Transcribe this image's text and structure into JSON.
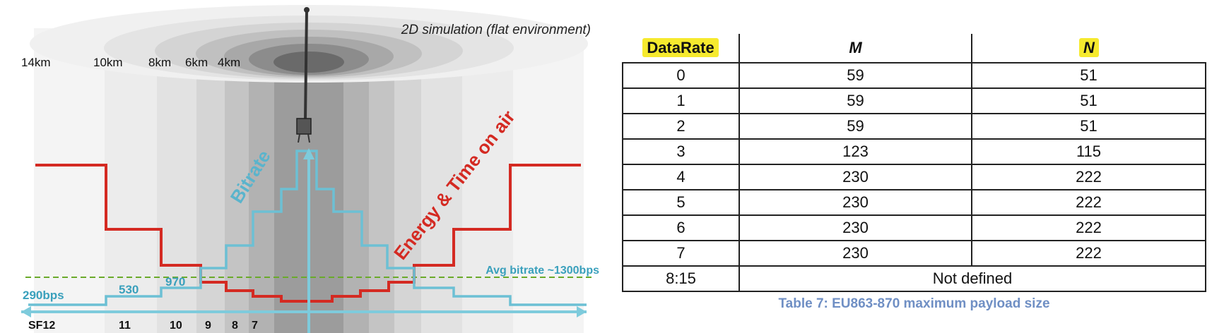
{
  "diagram": {
    "title": "2D simulation (flat environment)",
    "distance_labels": [
      "14km",
      "10km",
      "8km",
      "6km",
      "4km"
    ],
    "bitrate_label": "Bitrate",
    "energy_label": "Energy & Time on air",
    "avg_bitrate_label": "Avg bitrate ~1300bps",
    "bitrate_values": [
      "290bps",
      "530",
      "970"
    ],
    "sf_labels": [
      "SF12",
      "11",
      "10",
      "9",
      "8",
      "7"
    ],
    "colors": {
      "energy": "#d42a22",
      "bitrate": "#6cc0d4",
      "avg_line": "#6aaa2a",
      "axis": "#7ecbdc"
    }
  },
  "table": {
    "headers": [
      "DataRate",
      "M",
      "N"
    ],
    "rows": [
      [
        "0",
        "59",
        "51"
      ],
      [
        "1",
        "59",
        "51"
      ],
      [
        "2",
        "59",
        "51"
      ],
      [
        "3",
        "123",
        "115"
      ],
      [
        "4",
        "230",
        "222"
      ],
      [
        "5",
        "230",
        "222"
      ],
      [
        "6",
        "230",
        "222"
      ],
      [
        "7",
        "230",
        "222"
      ],
      [
        "8:15",
        "Not defined"
      ]
    ],
    "caption": "Table 7: EU863-870 maximum payload size",
    "highlight_color": "#f6ea2e"
  }
}
